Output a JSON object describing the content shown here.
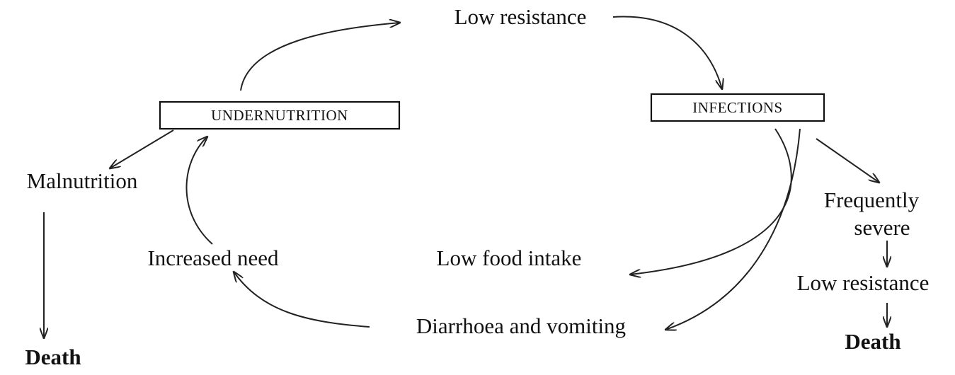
{
  "boxes": {
    "undernutrition": "UNDERNUTRITION",
    "infections": "INFECTIONS"
  },
  "labels": {
    "low_resistance_top": "Low resistance",
    "malnutrition": "Malnutrition",
    "death_left": "Death",
    "increased_need": "Increased need",
    "low_food_intake": "Low food intake",
    "diarrhoea_vomiting": "Diarrhoea and vomiting",
    "frequently": "Frequently",
    "severe": "severe",
    "low_resistance_right": "Low resistance",
    "death_right": "Death"
  }
}
